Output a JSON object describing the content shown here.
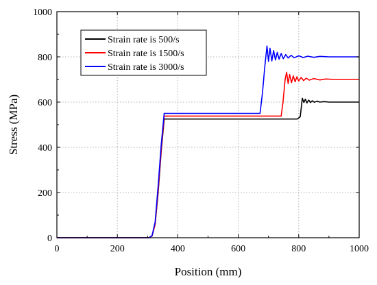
{
  "chart_data": {
    "type": "line",
    "title": "",
    "xlabel": "Position (mm)",
    "ylabel": "Stress (MPa)",
    "xlim": [
      0,
      1000
    ],
    "ylim": [
      0,
      1000
    ],
    "xticks": [
      0,
      200,
      400,
      600,
      800,
      1000
    ],
    "yticks": [
      0,
      200,
      400,
      600,
      800,
      1000
    ],
    "grid": true,
    "legend_position": "top-left",
    "series": [
      {
        "name": "Strain rate is 500/s",
        "color": "#000000",
        "points": [
          [
            0,
            0
          ],
          [
            305,
            0
          ],
          [
            315,
            8
          ],
          [
            325,
            60
          ],
          [
            335,
            200
          ],
          [
            345,
            380
          ],
          [
            355,
            525
          ],
          [
            795,
            525
          ],
          [
            805,
            535
          ],
          [
            812,
            617
          ],
          [
            817,
            598
          ],
          [
            822,
            613
          ],
          [
            827,
            596
          ],
          [
            833,
            609
          ],
          [
            839,
            598
          ],
          [
            845,
            606
          ],
          [
            852,
            599
          ],
          [
            860,
            604
          ],
          [
            870,
            600
          ],
          [
            885,
            602
          ],
          [
            900,
            600
          ],
          [
            1000,
            600
          ]
        ]
      },
      {
        "name": "Strain rate is 1500/s",
        "color": "#ff0000",
        "points": [
          [
            0,
            0
          ],
          [
            305,
            0
          ],
          [
            315,
            8
          ],
          [
            325,
            60
          ],
          [
            335,
            210
          ],
          [
            345,
            390
          ],
          [
            355,
            538
          ],
          [
            742,
            538
          ],
          [
            748,
            600
          ],
          [
            755,
            700
          ],
          [
            760,
            732
          ],
          [
            765,
            682
          ],
          [
            770,
            722
          ],
          [
            776,
            686
          ],
          [
            782,
            716
          ],
          [
            788,
            690
          ],
          [
            794,
            712
          ],
          [
            800,
            693
          ],
          [
            808,
            709
          ],
          [
            816,
            695
          ],
          [
            825,
            706
          ],
          [
            835,
            697
          ],
          [
            850,
            704
          ],
          [
            870,
            698
          ],
          [
            890,
            702
          ],
          [
            920,
            700
          ],
          [
            1000,
            700
          ]
        ]
      },
      {
        "name": "Strain rate is 3000/s",
        "color": "#0000ff",
        "points": [
          [
            0,
            0
          ],
          [
            305,
            0
          ],
          [
            315,
            10
          ],
          [
            325,
            70
          ],
          [
            335,
            230
          ],
          [
            345,
            410
          ],
          [
            355,
            550
          ],
          [
            672,
            550
          ],
          [
            680,
            640
          ],
          [
            688,
            760
          ],
          [
            695,
            848
          ],
          [
            700,
            780
          ],
          [
            705,
            838
          ],
          [
            711,
            782
          ],
          [
            717,
            828
          ],
          [
            723,
            786
          ],
          [
            729,
            820
          ],
          [
            735,
            790
          ],
          [
            742,
            815
          ],
          [
            749,
            792
          ],
          [
            757,
            810
          ],
          [
            765,
            795
          ],
          [
            775,
            807
          ],
          [
            785,
            796
          ],
          [
            800,
            805
          ],
          [
            815,
            797
          ],
          [
            830,
            803
          ],
          [
            850,
            798
          ],
          [
            870,
            802
          ],
          [
            900,
            800
          ],
          [
            1000,
            800
          ]
        ]
      }
    ]
  }
}
